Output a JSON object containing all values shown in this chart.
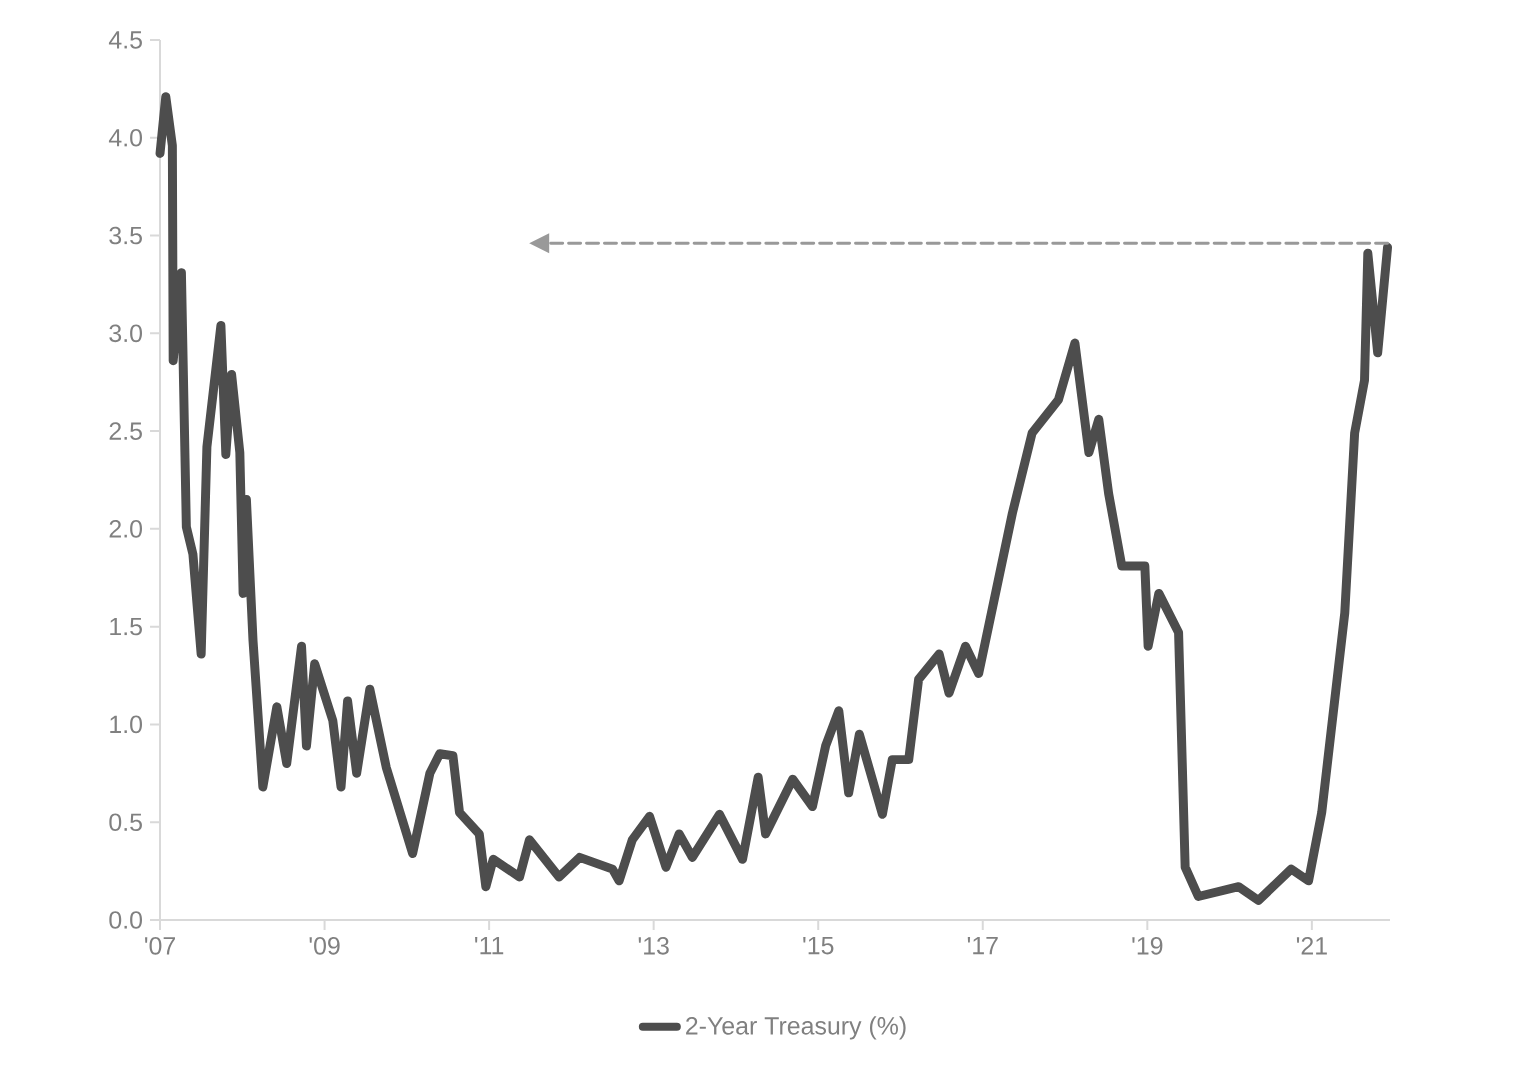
{
  "chart_data": {
    "type": "line",
    "x": [
      2007.0,
      2007.07,
      2007.15,
      2007.16,
      2007.26,
      2007.32,
      2007.4,
      2007.5,
      2007.57,
      2007.74,
      2007.8,
      2007.87,
      2007.97,
      2008.01,
      2008.05,
      2008.13,
      2008.25,
      2008.42,
      2008.54,
      2008.72,
      2008.78,
      2008.88,
      2009.1,
      2009.2,
      2009.28,
      2009.39,
      2009.55,
      2009.75,
      2010.07,
      2010.28,
      2010.4,
      2010.56,
      2010.64,
      2010.88,
      2010.96,
      2011.05,
      2011.37,
      2011.49,
      2011.85,
      2012.1,
      2012.5,
      2012.58,
      2012.74,
      2012.95,
      2013.15,
      2013.31,
      2013.47,
      2013.8,
      2014.08,
      2014.27,
      2014.36,
      2014.69,
      2014.93,
      2015.09,
      2015.25,
      2015.37,
      2015.5,
      2015.78,
      2015.9,
      2016.1,
      2016.22,
      2016.47,
      2016.59,
      2016.79,
      2016.95,
      2017.36,
      2017.6,
      2017.92,
      2018.12,
      2018.29,
      2018.41,
      2018.53,
      2018.69,
      2018.97,
      2019.01,
      2019.14,
      2019.38,
      2019.46,
      2019.62,
      2020.11,
      2020.35,
      2020.75,
      2020.96,
      2021.12,
      2021.4,
      2021.52,
      2021.64,
      2021.68,
      2021.8,
      2021.92
    ],
    "series": [
      {
        "name": "2-Year Treasury (%)",
        "color": "#4d4d4d",
        "values": [
          3.92,
          4.21,
          3.96,
          2.86,
          3.31,
          2.01,
          1.87,
          1.36,
          2.42,
          3.04,
          2.38,
          2.79,
          2.39,
          1.67,
          2.15,
          1.43,
          0.68,
          1.09,
          0.8,
          1.4,
          0.89,
          1.31,
          1.02,
          0.68,
          1.12,
          0.75,
          1.18,
          0.78,
          0.34,
          0.75,
          0.85,
          0.84,
          0.55,
          0.44,
          0.17,
          0.31,
          0.22,
          0.41,
          0.22,
          0.32,
          0.26,
          0.2,
          0.41,
          0.53,
          0.27,
          0.44,
          0.32,
          0.54,
          0.31,
          0.73,
          0.44,
          0.72,
          0.58,
          0.89,
          1.07,
          0.65,
          0.95,
          0.54,
          0.82,
          0.82,
          1.23,
          1.36,
          1.16,
          1.4,
          1.26,
          2.08,
          2.49,
          2.66,
          2.95,
          2.39,
          2.56,
          2.18,
          1.81,
          1.81,
          1.4,
          1.67,
          1.47,
          0.27,
          0.12,
          0.17,
          0.1,
          0.26,
          0.2,
          0.55,
          1.57,
          2.49,
          2.76,
          3.41,
          2.9,
          3.44
        ]
      },
      {
        "color": "#999999",
        "line_style": "dashed",
        "x": [
          2021.92,
          2011.73
        ],
        "values": [
          3.46,
          3.46
        ]
      }
    ],
    "xlim": [
      2007.0,
      2021.95
    ],
    "ylim": [
      0,
      4.5
    ],
    "xticks": [
      {
        "value": 2007,
        "label": "'07"
      },
      {
        "value": 2009,
        "label": "'09"
      },
      {
        "value": 2011,
        "label": "'11"
      },
      {
        "value": 2013,
        "label": "'13"
      },
      {
        "value": 2015,
        "label": "'15"
      },
      {
        "value": 2017,
        "label": "'17"
      },
      {
        "value": 2019,
        "label": "'19"
      },
      {
        "value": 2021,
        "label": "'21"
      }
    ],
    "yticks": [
      {
        "value": 0,
        "label": "0.0"
      },
      {
        "value": 0.5,
        "label": "0.5"
      },
      {
        "value": 1,
        "label": "1.0"
      },
      {
        "value": 1.5,
        "label": "1.5"
      },
      {
        "value": 2,
        "label": "2.0"
      },
      {
        "value": 2.5,
        "label": "2.5"
      },
      {
        "value": 3,
        "label": "3.0"
      },
      {
        "value": 3.5,
        "label": "3.5"
      },
      {
        "value": 4,
        "label": "4.0"
      },
      {
        "value": 4.5,
        "label": "4.5"
      }
    ],
    "grid": false,
    "legend": "bottom",
    "marker": "none",
    "line_style": "solid"
  }
}
